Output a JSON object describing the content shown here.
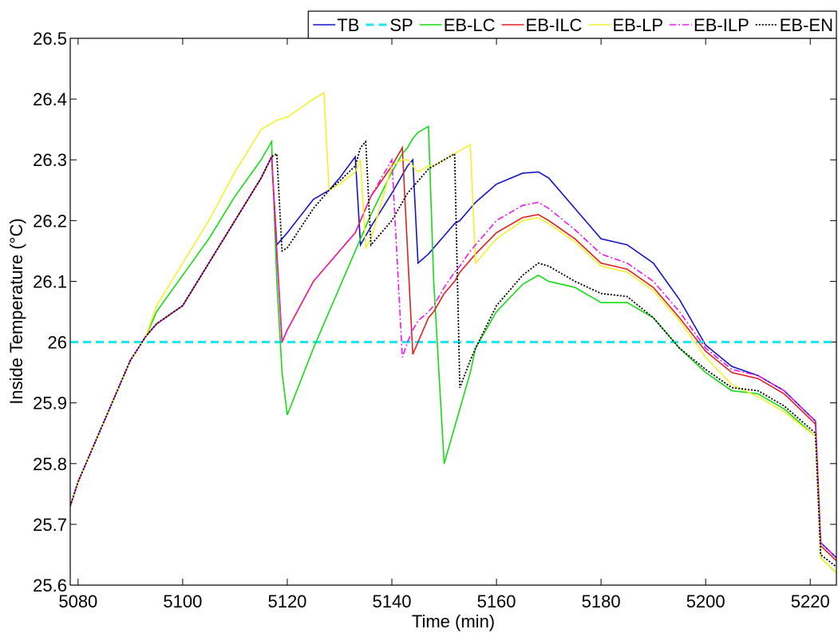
{
  "chart_data": {
    "type": "line",
    "x_label": "Time (min)",
    "y_label": "Inside Temperature (°C)",
    "xlim": [
      5078.5,
      5225
    ],
    "xticks": [
      5080,
      5100,
      5120,
      5140,
      5160,
      5180,
      5200,
      5220
    ],
    "ylim": [
      25.6,
      26.5
    ],
    "yticks": [
      25.6,
      25.7,
      25.8,
      25.9,
      26,
      26.1,
      26.2,
      26.3,
      26.4,
      26.5
    ],
    "grid": false,
    "legend": "top-right",
    "x": [
      5078.5,
      5080,
      5085,
      5090,
      5093,
      5095,
      5100,
      5105,
      5110,
      5115,
      5117,
      5118,
      5119,
      5120,
      5125,
      5127,
      5128,
      5130,
      5133,
      5134,
      5135,
      5136,
      5140,
      5142,
      5143,
      5144,
      5145,
      5147,
      5148,
      5150,
      5152,
      5153,
      5155,
      5156,
      5160,
      5165,
      5168,
      5170,
      5175,
      5180,
      5185,
      5190,
      5195,
      5200,
      5205,
      5210,
      5215,
      5221,
      5222,
      5225
    ],
    "series": [
      {
        "name": "TB",
        "color": "#1414c8",
        "style": "solid",
        "values": [
          25.73,
          25.77,
          25.87,
          25.97,
          26.01,
          26.03,
          26.06,
          26.13,
          26.2,
          26.27,
          26.305,
          26.16,
          26.17,
          26.18,
          26.235,
          26.245,
          26.25,
          26.27,
          26.305,
          26.16,
          26.175,
          26.19,
          26.245,
          26.275,
          26.29,
          26.3,
          26.13,
          26.145,
          26.155,
          26.175,
          26.195,
          26.2,
          26.22,
          26.23,
          26.26,
          26.278,
          26.28,
          26.27,
          26.22,
          26.17,
          26.16,
          26.13,
          26.07,
          25.995,
          25.96,
          25.945,
          25.92,
          25.87,
          25.67,
          25.645
        ]
      },
      {
        "name": "SP",
        "color": "#1ee6f0",
        "style": "dashed",
        "values": [
          26,
          26,
          26,
          26,
          26,
          26,
          26,
          26,
          26,
          26,
          26,
          26,
          26,
          26,
          26,
          26,
          26,
          26,
          26,
          26,
          26,
          26,
          26,
          26,
          26,
          26,
          26,
          26,
          26,
          26,
          26,
          26,
          26,
          26,
          26,
          26,
          26,
          26,
          26,
          26,
          26,
          26,
          26,
          26,
          26,
          26,
          26,
          26,
          26,
          26
        ]
      },
      {
        "name": "EB-LC",
        "color": "#14dc14",
        "style": "solid",
        "values": [
          25.73,
          25.77,
          25.87,
          25.97,
          26.01,
          26.05,
          26.11,
          26.17,
          26.24,
          26.3,
          26.33,
          26.1,
          25.95,
          25.88,
          25.99,
          26.03,
          26.05,
          26.09,
          26.15,
          26.17,
          26.19,
          26.21,
          26.28,
          26.31,
          26.32,
          26.335,
          26.345,
          26.355,
          26.1,
          25.8,
          25.86,
          25.89,
          25.95,
          25.99,
          26.05,
          26.095,
          26.11,
          26.1,
          26.09,
          26.065,
          26.065,
          26.04,
          25.99,
          25.95,
          25.92,
          25.915,
          25.89,
          25.845,
          25.645,
          25.62
        ]
      },
      {
        "name": "EB-ILC",
        "color": "#e02020",
        "style": "solid",
        "values": [
          25.73,
          25.77,
          25.87,
          25.97,
          26.01,
          26.03,
          26.06,
          26.13,
          26.2,
          26.27,
          26.305,
          26.15,
          26.0,
          26.02,
          26.1,
          26.12,
          26.13,
          26.15,
          26.18,
          26.2,
          26.22,
          26.24,
          26.29,
          26.32,
          26.15,
          25.98,
          26.0,
          26.04,
          26.05,
          26.08,
          26.1,
          26.115,
          26.135,
          26.145,
          26.18,
          26.205,
          26.21,
          26.2,
          26.17,
          26.13,
          26.12,
          26.09,
          26.04,
          25.985,
          25.95,
          25.94,
          25.915,
          25.865,
          25.665,
          25.64
        ]
      },
      {
        "name": "EB-LP",
        "color": "#f2f22a",
        "style": "solid",
        "values": [
          25.73,
          25.77,
          25.87,
          25.97,
          26.01,
          26.06,
          26.13,
          26.2,
          26.28,
          26.35,
          26.36,
          26.365,
          26.368,
          26.37,
          26.4,
          26.41,
          26.25,
          26.26,
          26.28,
          26.3,
          26.155,
          26.17,
          26.29,
          26.3,
          26.3,
          26.29,
          26.28,
          26.29,
          26.29,
          26.3,
          26.31,
          26.315,
          26.325,
          26.13,
          26.17,
          26.2,
          26.205,
          26.195,
          26.165,
          26.125,
          26.115,
          26.085,
          26.035,
          25.975,
          25.93,
          25.91,
          25.885,
          25.845,
          25.645,
          25.62
        ]
      },
      {
        "name": "EB-ILP",
        "color": "#f014f0",
        "style": "dashdot",
        "values": [
          25.73,
          25.77,
          25.87,
          25.97,
          26.01,
          26.03,
          26.06,
          26.13,
          26.2,
          26.27,
          26.305,
          26.15,
          26.0,
          26.02,
          26.1,
          26.12,
          26.13,
          26.15,
          26.18,
          26.2,
          26.22,
          26.24,
          26.3,
          25.975,
          26.0,
          26.02,
          26.035,
          26.05,
          26.06,
          26.09,
          26.115,
          26.125,
          26.15,
          26.16,
          26.2,
          26.225,
          26.23,
          26.22,
          26.185,
          26.145,
          26.13,
          26.1,
          26.05,
          25.99,
          25.955,
          25.945,
          25.92,
          25.87,
          25.67,
          25.645
        ]
      },
      {
        "name": "EB-EN",
        "color": "#000000",
        "style": "dotted",
        "values": [
          25.73,
          25.77,
          25.87,
          25.97,
          26.01,
          26.03,
          26.06,
          26.13,
          26.2,
          26.27,
          26.305,
          26.31,
          26.15,
          26.155,
          26.22,
          26.24,
          26.25,
          26.265,
          26.29,
          26.32,
          26.33,
          26.16,
          26.2,
          26.23,
          26.245,
          26.255,
          26.265,
          26.285,
          26.29,
          26.3,
          26.31,
          25.925,
          25.97,
          25.99,
          26.06,
          26.11,
          26.13,
          26.125,
          26.1,
          26.08,
          26.075,
          26.04,
          25.99,
          25.955,
          25.925,
          25.92,
          25.895,
          25.85,
          25.65,
          25.63
        ]
      }
    ]
  }
}
